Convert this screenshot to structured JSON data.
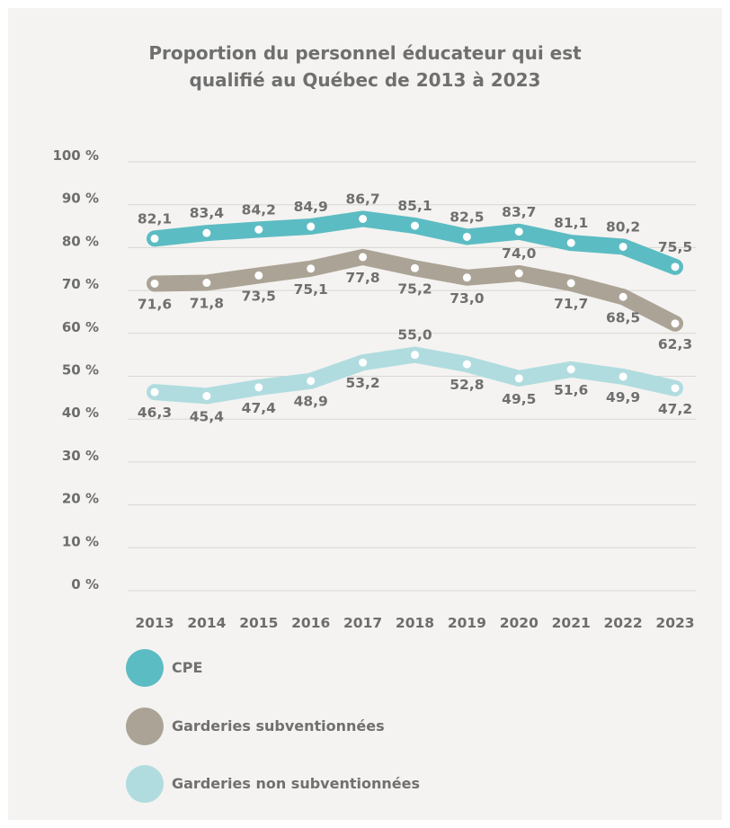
{
  "chart_data": {
    "type": "line",
    "title_lines": [
      "Proportion du personnel éducateur qui est",
      "qualifié au Québec de 2013 à 2023"
    ],
    "categories": [
      "2013",
      "2014",
      "2015",
      "2016",
      "2017",
      "2018",
      "2019",
      "2020",
      "2021",
      "2022",
      "2023"
    ],
    "y_ticks": [
      "100 %",
      "90 %",
      "80 %",
      "70 %",
      "60 %",
      "50 %",
      "40 %",
      "30 %",
      "20 %",
      "10 %",
      "0 %"
    ],
    "ylim": [
      0,
      100
    ],
    "grid": true,
    "legend_position": "bottom-left",
    "series": [
      {
        "name": "CPE",
        "color": "#5cbcc3",
        "values": [
          82.1,
          83.4,
          84.2,
          84.9,
          86.7,
          85.1,
          82.5,
          83.7,
          81.1,
          80.2,
          75.5
        ],
        "labels": [
          "82,1",
          "83,4",
          "84,2",
          "84,9",
          "86,7",
          "85,1",
          "82,5",
          "83,7",
          "81,1",
          "80,2",
          "75,5"
        ],
        "label_position": [
          "above",
          "above",
          "above",
          "above",
          "above",
          "above",
          "above",
          "above",
          "above",
          "above",
          "above"
        ]
      },
      {
        "name": "Garderies subventionnées",
        "color": "#aba395",
        "values": [
          71.6,
          71.8,
          73.5,
          75.1,
          77.8,
          75.2,
          73.0,
          74.0,
          71.7,
          68.5,
          62.3
        ],
        "labels": [
          "71,6",
          "71,8",
          "73,5",
          "75,1",
          "77,8",
          "75,2",
          "73,0",
          "74,0",
          "71,7",
          "68,5",
          "62,3"
        ],
        "label_position": [
          "below",
          "below",
          "below",
          "below",
          "below",
          "below",
          "below",
          "above",
          "below",
          "below",
          "below"
        ]
      },
      {
        "name": "Garderies non subventionnées",
        "color": "#b0dcdf",
        "values": [
          46.3,
          45.4,
          47.4,
          48.9,
          53.2,
          55.0,
          52.8,
          49.5,
          51.6,
          49.9,
          47.2
        ],
        "labels": [
          "46,3",
          "45,4",
          "47,4",
          "48,9",
          "53,2",
          "55,0",
          "52,8",
          "49,5",
          "51,6",
          "49,9",
          "47,2"
        ],
        "label_position": [
          "below",
          "below",
          "below",
          "below",
          "below",
          "above",
          "below",
          "below",
          "below",
          "below",
          "below"
        ]
      }
    ]
  }
}
